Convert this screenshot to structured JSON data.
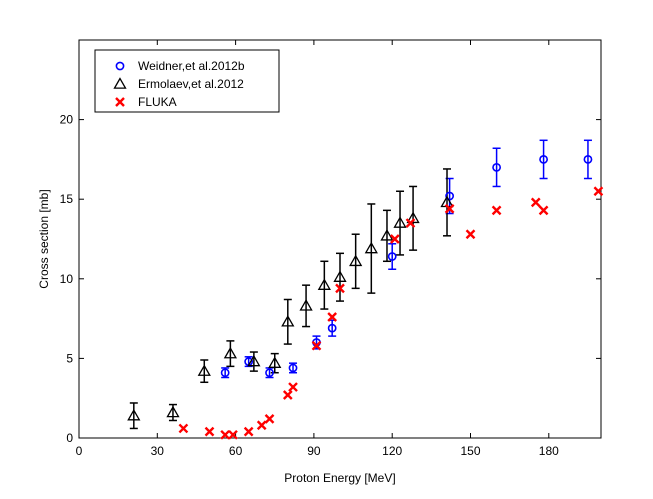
{
  "chart_data": {
    "type": "scatter",
    "title": "",
    "xlabel": "Proton Energy [MeV]",
    "ylabel": "Cross section [mb]",
    "xlim": [
      0,
      200
    ],
    "ylim": [
      0,
      25
    ],
    "x_ticks": [
      0,
      30,
      60,
      90,
      120,
      150,
      180
    ],
    "x_tick_labels": [
      "0",
      "30",
      "60",
      "90",
      "120",
      "150",
      "180"
    ],
    "y_ticks": [
      0,
      5,
      10,
      15,
      20
    ],
    "y_tick_labels": [
      "0",
      "5",
      "10",
      "15",
      "20"
    ],
    "grid": false,
    "legend_position": "top-left",
    "series": [
      {
        "name": "Weidner,et al.2012b",
        "marker": "circle",
        "color": "#0000ff",
        "points": [
          {
            "x": 56,
            "y": 4.1,
            "err": 0.3
          },
          {
            "x": 65,
            "y": 4.8,
            "err": 0.3
          },
          {
            "x": 73,
            "y": 4.1,
            "err": 0.3
          },
          {
            "x": 82,
            "y": 4.4,
            "err": 0.3
          },
          {
            "x": 91,
            "y": 6.0,
            "err": 0.4
          },
          {
            "x": 97,
            "y": 6.9,
            "err": 0.5
          },
          {
            "x": 120,
            "y": 11.4,
            "err": 0.8
          },
          {
            "x": 142,
            "y": 15.2,
            "err": 1.1
          },
          {
            "x": 160,
            "y": 17.0,
            "err": 1.2
          },
          {
            "x": 178,
            "y": 17.5,
            "err": 1.2
          },
          {
            "x": 195,
            "y": 17.5,
            "err": 1.2
          }
        ]
      },
      {
        "name": "Ermolaev,et al.2012",
        "marker": "triangle",
        "color": "#000000",
        "points": [
          {
            "x": 21,
            "y": 1.4,
            "err": 0.8
          },
          {
            "x": 36,
            "y": 1.6,
            "err": 0.5
          },
          {
            "x": 48,
            "y": 4.2,
            "err": 0.7
          },
          {
            "x": 58,
            "y": 5.3,
            "err": 0.8
          },
          {
            "x": 67,
            "y": 4.8,
            "err": 0.6
          },
          {
            "x": 75,
            "y": 4.7,
            "err": 0.6
          },
          {
            "x": 80,
            "y": 7.3,
            "err": 1.4
          },
          {
            "x": 87,
            "y": 8.3,
            "err": 1.3
          },
          {
            "x": 94,
            "y": 9.6,
            "err": 1.5
          },
          {
            "x": 100,
            "y": 10.1,
            "err": 1.5
          },
          {
            "x": 106,
            "y": 11.1,
            "err": 1.7
          },
          {
            "x": 112,
            "y": 11.9,
            "err": 2.8
          },
          {
            "x": 118,
            "y": 12.7,
            "err": 1.6
          },
          {
            "x": 123,
            "y": 13.5,
            "err": 2.0
          },
          {
            "x": 128,
            "y": 13.8,
            "err": 2.0
          },
          {
            "x": 141,
            "y": 14.8,
            "err": 2.1
          }
        ]
      },
      {
        "name": "FLUKA",
        "marker": "x",
        "color": "#ff0000",
        "points": [
          {
            "x": 40,
            "y": 0.6
          },
          {
            "x": 50,
            "y": 0.4
          },
          {
            "x": 56,
            "y": 0.2
          },
          {
            "x": 59,
            "y": 0.2
          },
          {
            "x": 65,
            "y": 0.4
          },
          {
            "x": 70,
            "y": 0.8
          },
          {
            "x": 73,
            "y": 1.2
          },
          {
            "x": 80,
            "y": 2.7
          },
          {
            "x": 82,
            "y": 3.2
          },
          {
            "x": 91,
            "y": 5.8
          },
          {
            "x": 97,
            "y": 7.6
          },
          {
            "x": 100,
            "y": 9.4
          },
          {
            "x": 121,
            "y": 12.5
          },
          {
            "x": 127,
            "y": 13.5
          },
          {
            "x": 142,
            "y": 14.4
          },
          {
            "x": 150,
            "y": 12.8
          },
          {
            "x": 160,
            "y": 14.3
          },
          {
            "x": 175,
            "y": 14.8
          },
          {
            "x": 178,
            "y": 14.3
          },
          {
            "x": 199,
            "y": 15.5
          }
        ]
      }
    ]
  }
}
